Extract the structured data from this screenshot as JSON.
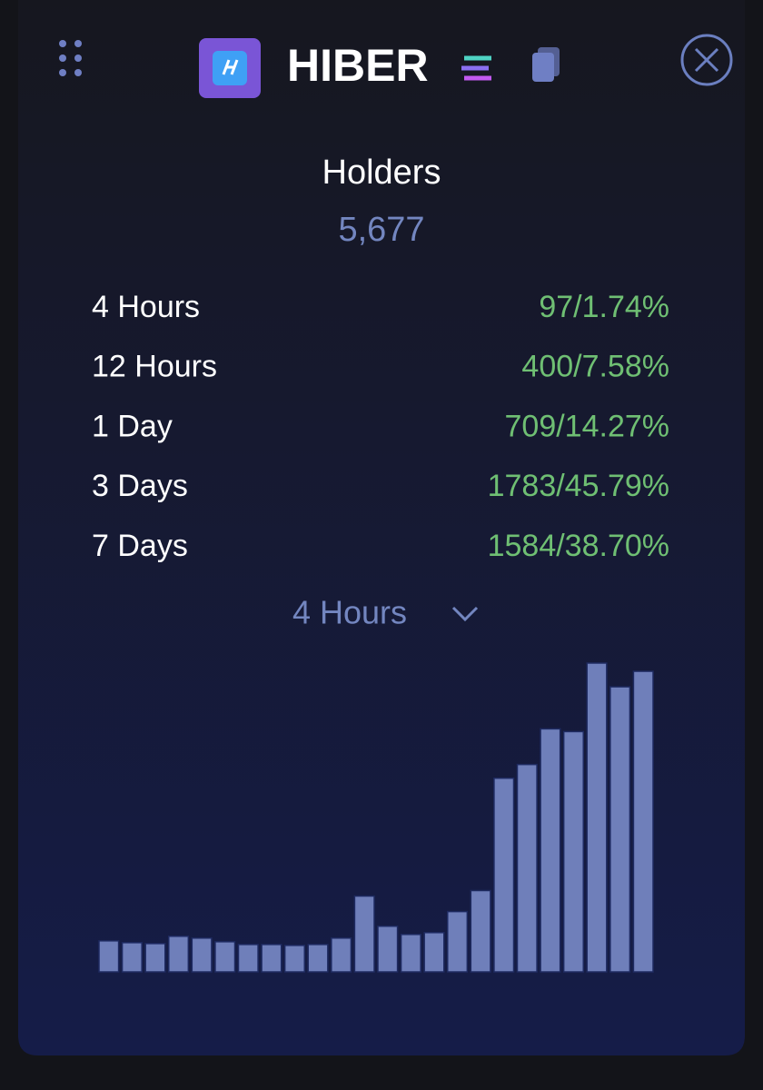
{
  "header": {
    "title": "HIBER"
  },
  "holders": {
    "label": "Holders",
    "value": "5,677"
  },
  "stats": [
    {
      "label": "4 Hours",
      "value": "97/1.74%"
    },
    {
      "label": "12 Hours",
      "value": "400/7.58%"
    },
    {
      "label": "1 Day",
      "value": "709/14.27%"
    },
    {
      "label": "3 Days",
      "value": "1783/45.79%"
    },
    {
      "label": "7 Days",
      "value": "1584/38.70%"
    }
  ],
  "dropdown": {
    "label": "4 Hours"
  },
  "chart": {
    "type": "bar",
    "color": "#6f7fba",
    "values": [
      34,
      32,
      31,
      39,
      37,
      33,
      30,
      30,
      29,
      30,
      37,
      83,
      50,
      41,
      43,
      66,
      89,
      212,
      227,
      266,
      263,
      338,
      312,
      329
    ]
  }
}
